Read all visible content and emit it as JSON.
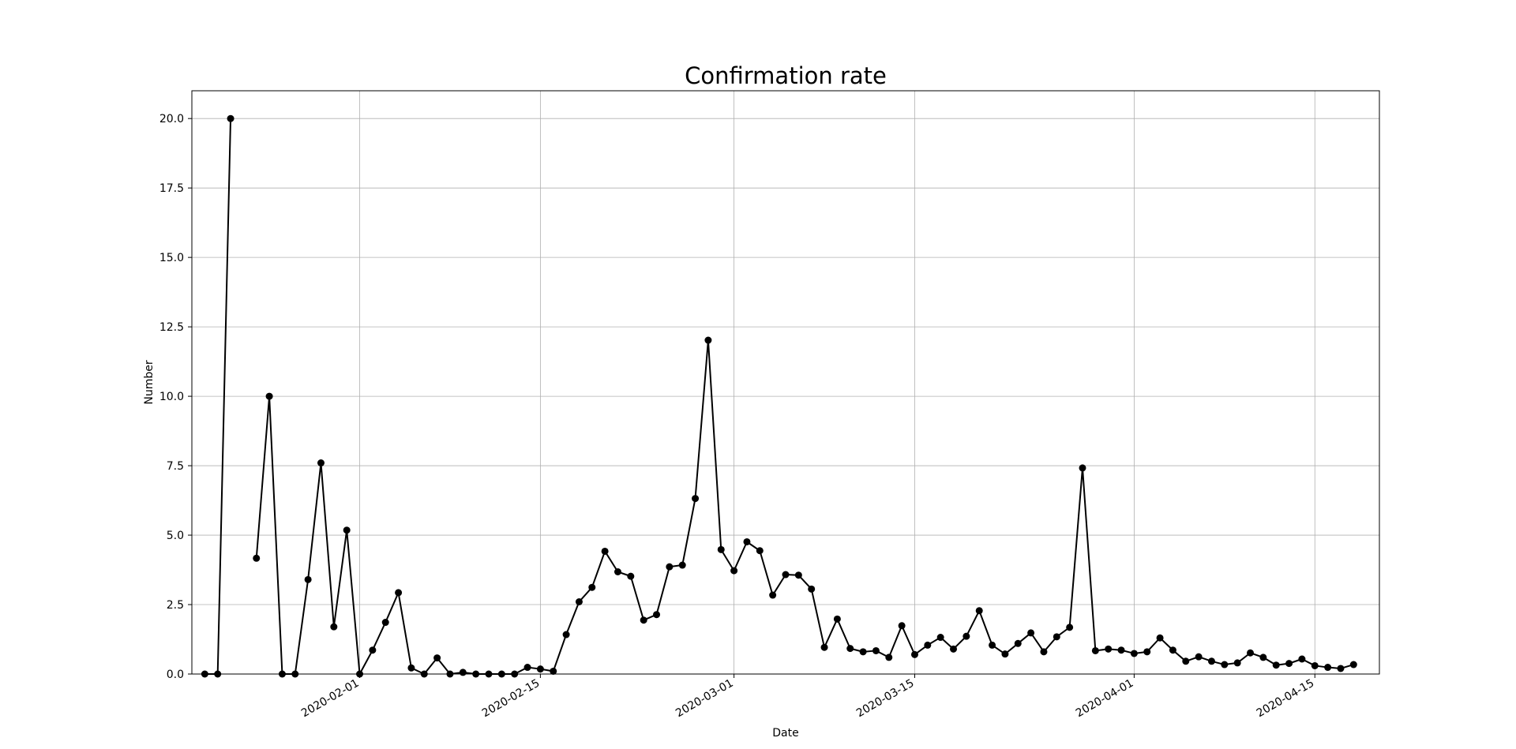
{
  "chart_data": {
    "type": "line",
    "title": "Confirmation rate",
    "xlabel": "Date",
    "ylabel": "Number",
    "x_start": "2020-01-20",
    "x_end": "2020-04-20",
    "xlim": [
      "2020-01-19",
      "2020-04-20"
    ],
    "ylim": [
      0,
      21
    ],
    "grid": true,
    "marker": "circle",
    "line_color": "#000000",
    "x_ticks": [
      "2020-02-01",
      "2020-02-15",
      "2020-03-01",
      "2020-03-15",
      "2020-04-01",
      "2020-04-15"
    ],
    "y_ticks": [
      "0.0",
      "2.5",
      "5.0",
      "7.5",
      "10.0",
      "12.5",
      "15.0",
      "17.5",
      "20.0"
    ],
    "series": [
      {
        "values": [
          0,
          0,
          20,
          null,
          4.17,
          10,
          0,
          0,
          3.4,
          7.6,
          1.7,
          5.18,
          0,
          0.86,
          1.86,
          2.93,
          0.22,
          0,
          0.58,
          0,
          0.06,
          0,
          0,
          0,
          0,
          0.24,
          0.18,
          0.1,
          1.42,
          2.6,
          3.12,
          4.42,
          3.68,
          3.52,
          1.94,
          2.14,
          3.86,
          3.92,
          6.32,
          12.02,
          4.48,
          3.72,
          4.76,
          4.44,
          2.84,
          3.58,
          3.56,
          3.06,
          0.96,
          1.98,
          0.92,
          0.8,
          0.84,
          0.6,
          1.74,
          0.7,
          1.04,
          1.32,
          0.9,
          1.36,
          2.28,
          1.04,
          0.72,
          1.1,
          1.48,
          0.8,
          1.34,
          1.68,
          7.42,
          0.84,
          0.9,
          0.86,
          0.74,
          0.8,
          1.3,
          0.86,
          0.46,
          0.62,
          0.46,
          0.34,
          0.4,
          0.76,
          0.6,
          0.32,
          0.38,
          0.54,
          0.3,
          0.24,
          0.2,
          0.34
        ]
      }
    ]
  }
}
